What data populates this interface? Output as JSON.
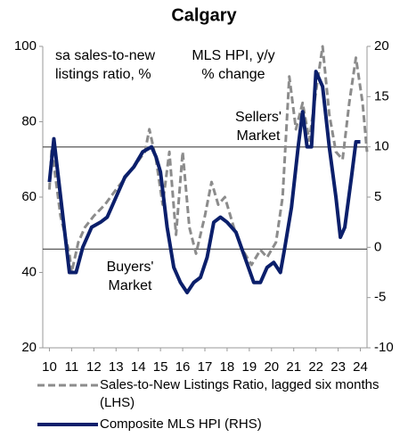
{
  "chart_data": {
    "type": "line",
    "title": "Calgary",
    "xticks": [
      10,
      11,
      12,
      13,
      14,
      15,
      16,
      17,
      18,
      19,
      20,
      21,
      22,
      23,
      24
    ],
    "xlim": [
      9.7,
      24.3
    ],
    "ylim": [
      20,
      100
    ],
    "yticks": [
      20,
      40,
      60,
      80,
      100
    ],
    "y2lim": [
      -10,
      20
    ],
    "y2ticks": [
      -10,
      -5,
      0,
      5,
      10,
      15,
      20
    ],
    "hlines": [
      73.3,
      46.2
    ],
    "annotations": [
      {
        "lines": [
          "sa sales-to-new",
          "listings ratio, %"
        ]
      },
      {
        "lines": [
          "MLS HPI, y/y",
          "% change"
        ]
      },
      {
        "lines": [
          "Sellers'",
          "Market"
        ]
      },
      {
        "lines": [
          "Buyers'",
          "Market"
        ]
      }
    ],
    "series": [
      {
        "name": "Sales-to-New Listings Ratio, lagged six months (LHS)",
        "color": "#8c8c8c",
        "dashed": true,
        "x": [
          10.0,
          10.1,
          10.5,
          10.9,
          11.0,
          11.3,
          11.6,
          12.0,
          12.5,
          13.0,
          13.4,
          13.8,
          14.3,
          14.5,
          14.8,
          15.1,
          15.4,
          15.7,
          16.0,
          16.3,
          16.6,
          17.0,
          17.3,
          17.6,
          17.9,
          18.3,
          18.7,
          19.1,
          19.5,
          19.8,
          20.2,
          20.5,
          20.8,
          21.1,
          21.4,
          21.7,
          22.0,
          22.3,
          22.6,
          22.9,
          23.2,
          23.5,
          23.8,
          24.1,
          24.3
        ],
        "values": [
          62,
          73,
          55,
          45,
          40,
          48,
          52,
          55,
          58,
          62,
          65,
          68,
          72,
          78,
          70,
          58,
          72,
          50,
          72,
          52,
          45,
          55,
          64,
          58,
          60,
          52,
          46,
          42,
          46,
          44,
          48,
          60,
          92,
          78,
          85,
          75,
          88,
          100,
          82,
          72,
          70,
          85,
          97,
          85,
          72
        ]
      },
      {
        "name": "Composite MLS HPI (RHS)",
        "color": "#0b1f6b",
        "axis": "y2",
        "x": [
          10.0,
          10.2,
          10.9,
          11.2,
          11.5,
          11.9,
          12.3,
          12.6,
          13.0,
          13.4,
          13.8,
          14.2,
          14.6,
          14.8,
          15.0,
          15.3,
          15.6,
          15.9,
          16.2,
          16.5,
          16.8,
          17.1,
          17.4,
          17.7,
          18.0,
          18.4,
          18.8,
          19.2,
          19.5,
          19.8,
          20.1,
          20.4,
          20.6,
          20.9,
          21.2,
          21.4,
          21.6,
          21.8,
          22.0,
          22.3,
          22.6,
          22.9,
          23.1,
          23.3,
          23.6,
          23.8,
          24.0
        ],
        "values": [
          6.5,
          10.8,
          -2.5,
          -2.5,
          0,
          2,
          2.5,
          3,
          5,
          7,
          8,
          9.5,
          10,
          9,
          7.5,
          2,
          -2,
          -3.5,
          -4.5,
          -3.5,
          -3,
          -1,
          2.5,
          3,
          2.5,
          1.5,
          -1,
          -3.5,
          -3.5,
          -2,
          -1.5,
          -2.5,
          0,
          4,
          10,
          13.5,
          10,
          10,
          17.5,
          16,
          10,
          5,
          1,
          2,
          7,
          10.5,
          10.5
        ]
      }
    ]
  }
}
